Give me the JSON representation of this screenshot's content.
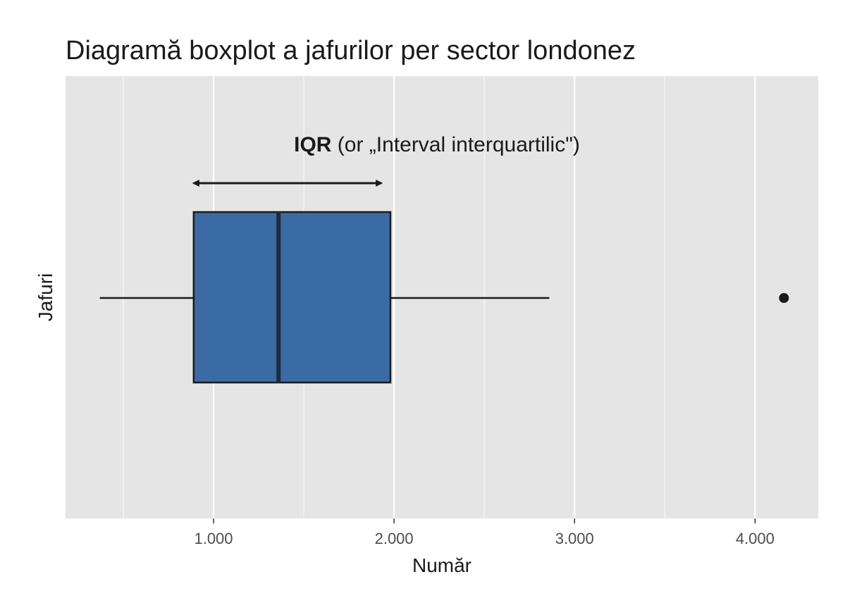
{
  "chart_data": {
    "type": "boxplot",
    "title": "Diagramă boxplot a jafurilor per sector londonez",
    "xlabel": "Număr",
    "ylabel": "Jafuri",
    "xlim": [
      180,
      4350
    ],
    "x_ticks": [
      1000,
      2000,
      3000,
      4000
    ],
    "x_tick_labels": [
      "1.000",
      "2.000",
      "3.000",
      "4.000"
    ],
    "grid": true,
    "box": {
      "whisker_low": 370,
      "q1": 890,
      "median": 1360,
      "q3": 1980,
      "whisker_high": 2860,
      "outliers": [
        4160
      ]
    },
    "box_color": "#3a6ba5",
    "annotation": {
      "bold_text": "IQR",
      "text": " (or „Interval interquartilic\")",
      "arrow_from": 890,
      "arrow_to": 1930
    }
  }
}
